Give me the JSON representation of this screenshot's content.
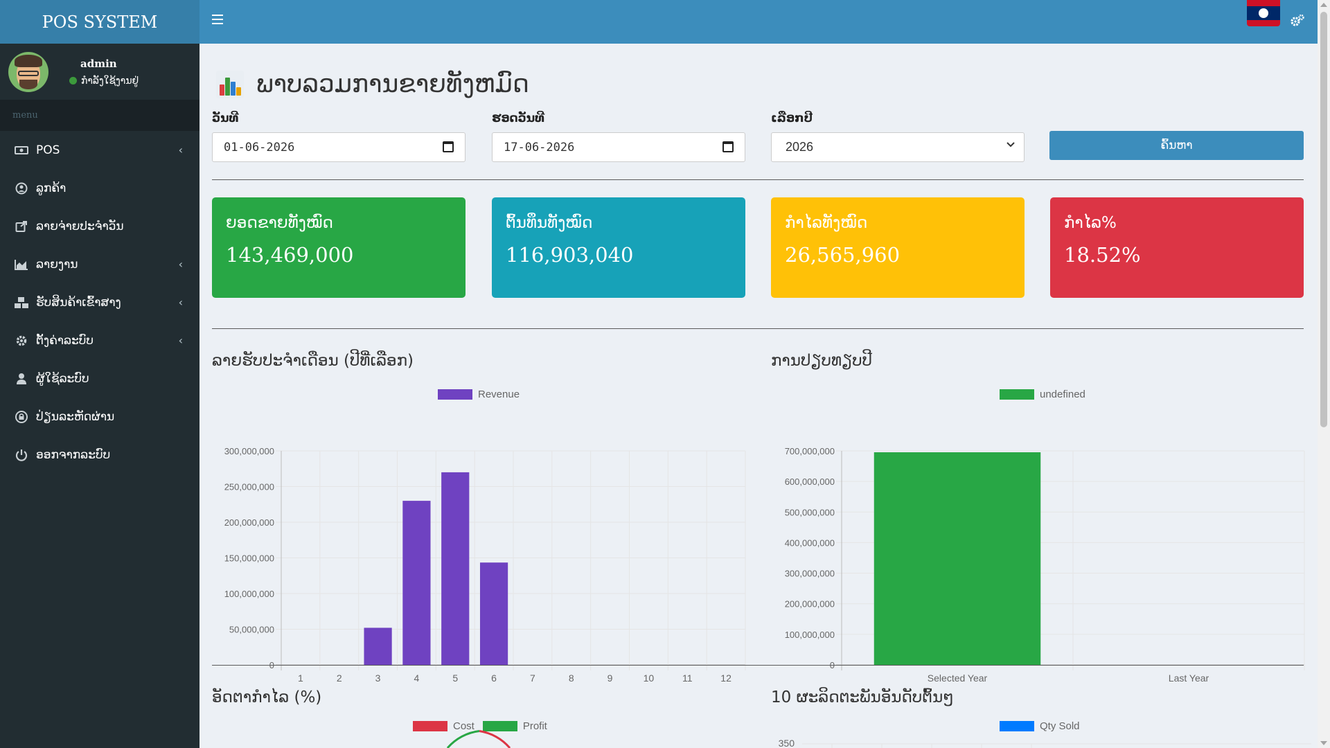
{
  "app": {
    "title": "POS SYSTEM"
  },
  "user": {
    "name": "admin",
    "status": "ກຳລັງໃຊ້ງານຢູ່"
  },
  "sidebar": {
    "menu_header": "menu",
    "items": [
      {
        "label": "POS",
        "icon": "money-bill-icon",
        "has_children": true
      },
      {
        "label": "ລູກຄ້າ",
        "icon": "user-circle-icon",
        "has_children": false
      },
      {
        "label": "ລາຍຈ່າຍປະຈຳວັນ",
        "icon": "share-square-icon",
        "has_children": false
      },
      {
        "label": "ລາຍງານ",
        "icon": "area-chart-icon",
        "has_children": true
      },
      {
        "label": "ຮັບສິນຄ້າເຂົ້າສາງ",
        "icon": "cubes-icon",
        "has_children": true
      },
      {
        "label": "ຕັ້ງຄ່າລະບົບ",
        "icon": "gear-icon",
        "has_children": true
      },
      {
        "label": "ຜູ້ໃຊ້ລະບົບ",
        "icon": "user-icon",
        "has_children": false
      },
      {
        "label": "ປ່ຽນລະຫັດຜ່ານ",
        "icon": "lock-icon",
        "has_children": false
      },
      {
        "label": "ອອກຈາກລະບົບ",
        "icon": "power-off-icon",
        "has_children": false
      }
    ]
  },
  "topbar": {
    "flag": "laos-flag-icon",
    "settings_icon": "cogs-icon"
  },
  "page": {
    "title": "ພາບລວມການຂາຍທັງຫມົດ",
    "filters": {
      "start_date_label": "ວັນທີ",
      "start_date_value": "01-06-2026",
      "end_date_label": "ຮອດວັນທີ",
      "end_date_value": "17-06-2026",
      "year_label": "ເລືອກປີ",
      "year_value": "2026",
      "search_label": "ຄົ້ນຫາ"
    },
    "cards": [
      {
        "label": "ຍອດຂາຍທັງໝົດ",
        "value": "143,469,000",
        "color": "#28a745"
      },
      {
        "label": "ຕົ້ນທຶນທັງໝົດ",
        "value": "116,903,040",
        "color": "#17a2b8"
      },
      {
        "label": "ກຳໄລທັງໝົດ",
        "value": "26,565,960",
        "color": "#ffc107"
      },
      {
        "label": "ກຳໄລ%",
        "value": "18.52%",
        "color": "#dc3545"
      }
    ],
    "sections": {
      "monthly_revenue": "ລາຍຮັບປະຈຳເດືອນ (ປີທີ່ເລືອກ)",
      "year_compare": "ການປຽບທຽບປີ",
      "profit_ratio": "ອັດຕາກຳໄລ (%)",
      "top_products": "10 ຜະລິດຕະພັນອັນດັບຕົ້ນໆ"
    }
  },
  "chart_data": [
    {
      "type": "bar",
      "categories": [
        "1",
        "2",
        "3",
        "4",
        "5",
        "6",
        "7",
        "8",
        "9",
        "10",
        "11",
        "12"
      ],
      "series": [
        {
          "name": "Revenue",
          "values": [
            0,
            0,
            52000000,
            230000000,
            270000000,
            143469000,
            0,
            0,
            0,
            0,
            0,
            0
          ],
          "color": "#6f42c1"
        }
      ],
      "ylim": [
        0,
        300000000
      ],
      "yticks": [
        "300,000,000",
        "250,000,000",
        "200,000,000",
        "150,000,000",
        "100,000,000",
        "50,000,000",
        "0"
      ],
      "grid": true,
      "legend": "top"
    },
    {
      "type": "bar",
      "categories": [
        "Selected Year",
        "Last Year"
      ],
      "series": [
        {
          "name": "undefined",
          "values": [
            695469000,
            0
          ],
          "color": "#28a745"
        }
      ],
      "ylim": [
        0,
        700000000
      ],
      "yticks": [
        "700,000,000",
        "600,000,000",
        "500,000,000",
        "400,000,000",
        "300,000,000",
        "200,000,000",
        "100,000,000",
        "0"
      ],
      "grid": true,
      "legend": "top"
    },
    {
      "type": "pie",
      "series": [
        {
          "name": "Cost",
          "color": "#dc3545"
        },
        {
          "name": "Profit",
          "color": "#28a745"
        }
      ],
      "legend": "top"
    },
    {
      "type": "bar",
      "series": [
        {
          "name": "Qty Sold",
          "color": "#007bff"
        }
      ],
      "yticks": [
        "350"
      ],
      "legend": "top"
    }
  ]
}
